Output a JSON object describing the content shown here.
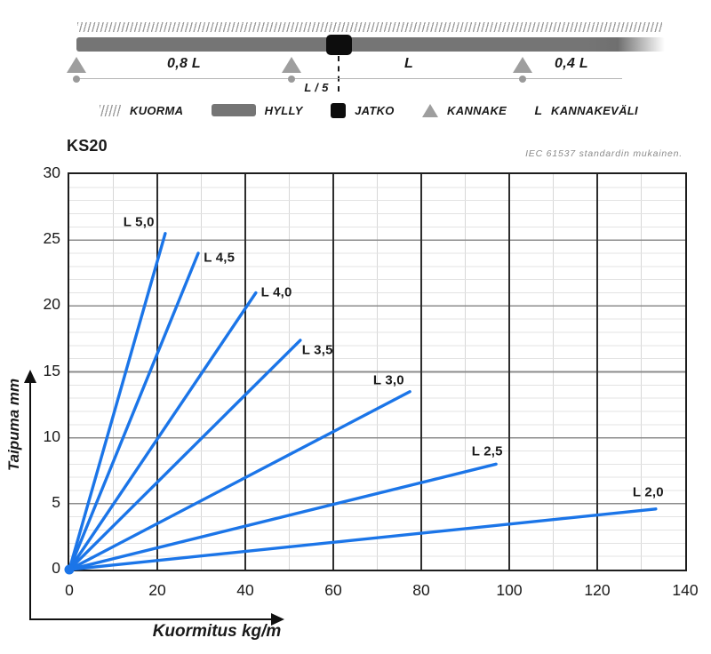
{
  "diagram": {
    "labels": {
      "span_left": "0,8 L",
      "span_mid": "L",
      "span_right": "0,4 L",
      "joint_offset": "L / 5"
    }
  },
  "legend": {
    "items": [
      {
        "icon": "load-hatch-icon",
        "label": "KUORMA"
      },
      {
        "icon": "shelf-bar-icon",
        "label": "HYLLY"
      },
      {
        "icon": "joint-square-icon",
        "label": "JATKO"
      },
      {
        "icon": "support-triangle-icon",
        "label": "KANNAKE"
      },
      {
        "icon": "letter-l-symbol",
        "symbol": "L",
        "label": "KANNAKEVÄLI"
      }
    ]
  },
  "chart": {
    "title": "KS20",
    "standard_note": "IEC 61537 standardin mukainen.",
    "xlabel": "Kuormitus kg/m",
    "ylabel": "Taipuma mm"
  },
  "chart_data": {
    "type": "line",
    "title": "KS20",
    "xlabel": "Kuormitus kg/m",
    "ylabel": "Taipuma mm",
    "xlim": [
      0,
      140
    ],
    "ylim": [
      0,
      30
    ],
    "x_ticks": [
      0,
      20,
      40,
      60,
      80,
      100,
      120,
      140
    ],
    "y_ticks": [
      0,
      5,
      10,
      15,
      20,
      25,
      30
    ],
    "x_minor_step": 10,
    "y_minor_step": 1,
    "grid": true,
    "legend_position": "inline-labels",
    "line_color": "#1b75e8",
    "series": [
      {
        "name": "L 5,0",
        "x": [
          0,
          21.8
        ],
        "y": [
          0,
          25.5
        ],
        "label_at": [
          16.2,
          26.2
        ]
      },
      {
        "name": "L 4,5",
        "x": [
          0,
          29.3
        ],
        "y": [
          0,
          24.0
        ],
        "label_at": [
          34.5,
          23.5
        ]
      },
      {
        "name": "L 4,0",
        "x": [
          0,
          42.4
        ],
        "y": [
          0,
          21.0
        ],
        "label_at": [
          47.5,
          20.9
        ]
      },
      {
        "name": "L 3,5",
        "x": [
          0,
          52.5
        ],
        "y": [
          0,
          17.4
        ],
        "label_at": [
          56.8,
          16.5
        ]
      },
      {
        "name": "L 3,0",
        "x": [
          0,
          77.4
        ],
        "y": [
          0,
          13.5
        ],
        "label_at": [
          73.0,
          14.2
        ]
      },
      {
        "name": "L 2,5",
        "x": [
          0,
          97.0
        ],
        "y": [
          0,
          8.0
        ],
        "label_at": [
          95.4,
          8.8
        ]
      },
      {
        "name": "L 2,0",
        "x": [
          0,
          133.3
        ],
        "y": [
          0,
          4.6
        ],
        "label_at": [
          132.0,
          5.7
        ]
      }
    ]
  }
}
